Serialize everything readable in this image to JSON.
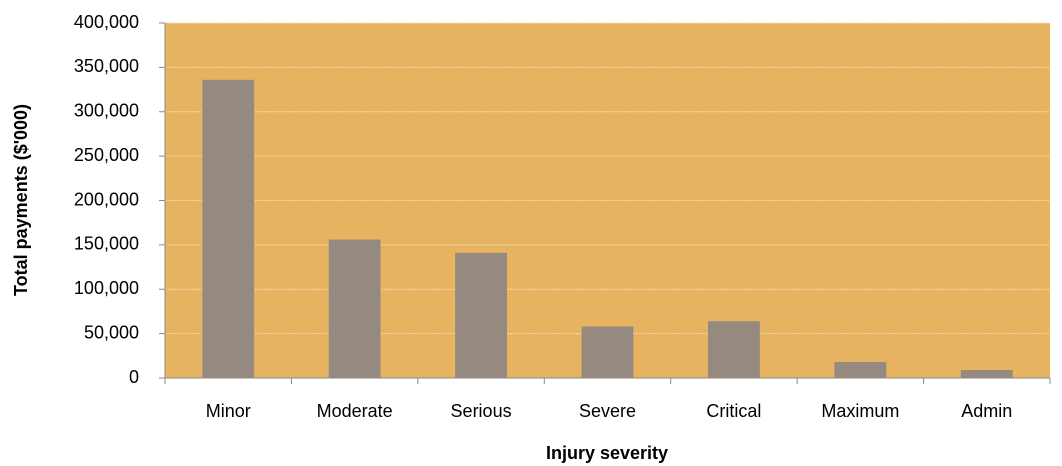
{
  "chart_data": {
    "type": "bar",
    "x_label": "Injury severity",
    "y_label": "Total payments ($'000)",
    "categories": [
      "Minor",
      "Moderate",
      "Serious",
      "Severe",
      "Critical",
      "Maximum",
      "Admin"
    ],
    "values": [
      336000,
      156000,
      141000,
      58000,
      64000,
      18000,
      9000
    ],
    "color": "#968a80",
    "plot_background": "#e6b460",
    "ylim": [
      0,
      400000
    ],
    "yticks": [
      0,
      {
        "value": 50000,
        "label": "50,000"
      },
      {
        "value": 100000,
        "label": "100,000"
      },
      {
        "value": 150000,
        "label": "150,000"
      },
      {
        "value": 200000,
        "label": "200,000"
      },
      {
        "value": 250000,
        "label": "250,000"
      },
      {
        "value": 300000,
        "label": "300,000"
      },
      {
        "value": 350000,
        "label": "350,000"
      },
      {
        "value": 400000,
        "label": "400,000"
      }
    ],
    "grid": true
  }
}
